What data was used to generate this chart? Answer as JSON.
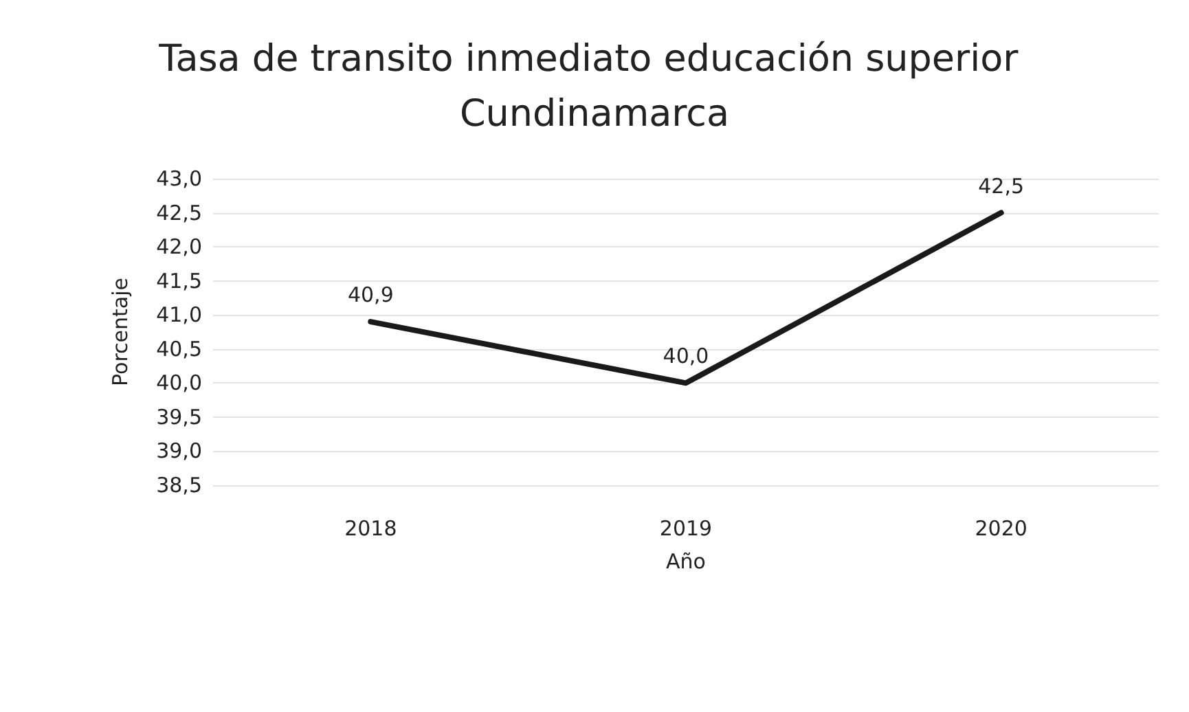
{
  "chart_data": {
    "type": "line",
    "title": "Tasa de transito inmediato educación superior Cundinamarca",
    "xlabel": "Año",
    "ylabel": "Porcentaje",
    "categories": [
      "2018",
      "2019",
      "2020"
    ],
    "series": [
      {
        "color": "#1a1a1a",
        "values": [
          40.9,
          40.0,
          42.5
        ],
        "value_labels": [
          "40,9",
          "40,0",
          "42,5"
        ]
      }
    ],
    "ylim": [
      38.5,
      43.0
    ],
    "yticks": [
      {
        "value": 38.5,
        "label": "38,5"
      },
      {
        "value": 39.0,
        "label": "39,0"
      },
      {
        "value": 39.5,
        "label": "39,5"
      },
      {
        "value": 40.0,
        "label": "40,0"
      },
      {
        "value": 40.5,
        "label": "40,5"
      },
      {
        "value": 41.0,
        "label": "41,0"
      },
      {
        "value": 41.5,
        "label": "41,5"
      },
      {
        "value": 42.0,
        "label": "42,0"
      },
      {
        "value": 42.5,
        "label": "42,5"
      },
      {
        "value": 43.0,
        "label": "43,0"
      }
    ],
    "grid": "y",
    "marker": "none",
    "line_style": "solid"
  }
}
